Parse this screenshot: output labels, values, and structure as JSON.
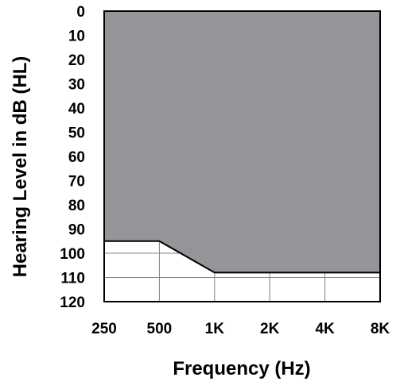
{
  "chart_data": {
    "type": "area",
    "title": "",
    "xlabel": "Frequency (Hz)",
    "ylabel": "Hearing Level in dB (HL)",
    "x_scale": "log",
    "y_inverted": true,
    "x_ticks": [
      {
        "label": "250",
        "value": 250
      },
      {
        "label": "500",
        "value": 500
      },
      {
        "label": "1K",
        "value": 1000
      },
      {
        "label": "2K",
        "value": 2000
      },
      {
        "label": "4K",
        "value": 4000
      },
      {
        "label": "8K",
        "value": 8000
      }
    ],
    "y_ticks": [
      0,
      10,
      20,
      30,
      40,
      50,
      60,
      70,
      80,
      90,
      100,
      110,
      120
    ],
    "xlim": [
      250,
      8000
    ],
    "ylim": [
      0,
      120
    ],
    "grid": true,
    "shaded_region": {
      "description_color": "#939598",
      "from_level": 0,
      "boundary": {
        "x": [
          250,
          500,
          1000,
          2000,
          4000,
          8000
        ],
        "y": [
          95,
          95,
          108,
          108,
          108,
          108
        ]
      }
    },
    "grid_lines_y": [
      100,
      110
    ],
    "colors": {
      "fill": "#939598",
      "grid": "#808080",
      "axis": "#000000"
    }
  }
}
